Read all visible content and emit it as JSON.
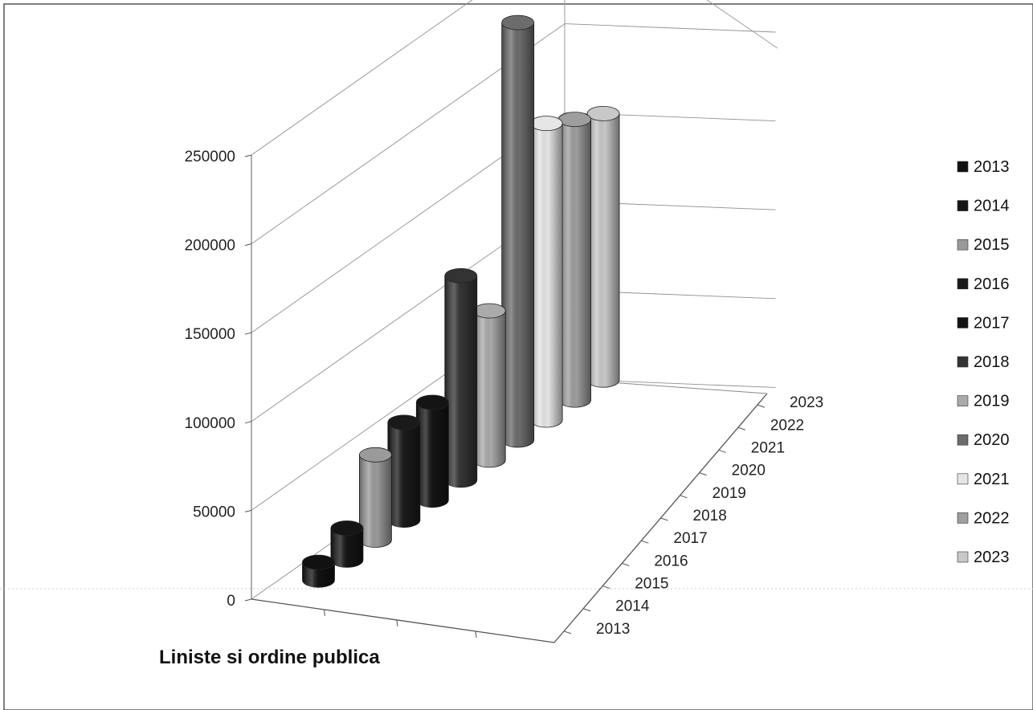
{
  "chart_data": {
    "type": "bar",
    "subtype": "3d-cylinder",
    "title": "",
    "categories": [
      "Liniste si ordine publica"
    ],
    "series": [
      {
        "name": "2013",
        "values": [
          10000
        ],
        "color": "#111111"
      },
      {
        "name": "2014",
        "values": [
          18000
        ],
        "color": "#151515"
      },
      {
        "name": "2015",
        "values": [
          48000
        ],
        "color": "#9a9a9a"
      },
      {
        "name": "2016",
        "values": [
          55000
        ],
        "color": "#1a1a1a"
      },
      {
        "name": "2017",
        "values": [
          55000
        ],
        "color": "#141414"
      },
      {
        "name": "2018",
        "values": [
          115000
        ],
        "color": "#333333"
      },
      {
        "name": "2019",
        "values": [
          84000
        ],
        "color": "#aaaaaa"
      },
      {
        "name": "2020",
        "values": [
          235000
        ],
        "color": "#6c6c6c"
      },
      {
        "name": "2021",
        "values": [
          167000
        ],
        "color": "#e6e6e6"
      },
      {
        "name": "2022",
        "values": [
          158000
        ],
        "color": "#9e9e9e"
      },
      {
        "name": "2023",
        "values": [
          150000
        ],
        "color": "#c8c8c8"
      }
    ],
    "depth_labels": [
      "2013",
      "2014",
      "2015",
      "2016",
      "2017",
      "2018",
      "2019",
      "2020",
      "2021",
      "2022",
      "2023"
    ],
    "ylim": [
      0,
      250000
    ],
    "y_ticks": [
      "0",
      "50000",
      "100000",
      "150000",
      "200000",
      "250000"
    ],
    "grid": true,
    "legend_position": "right"
  }
}
